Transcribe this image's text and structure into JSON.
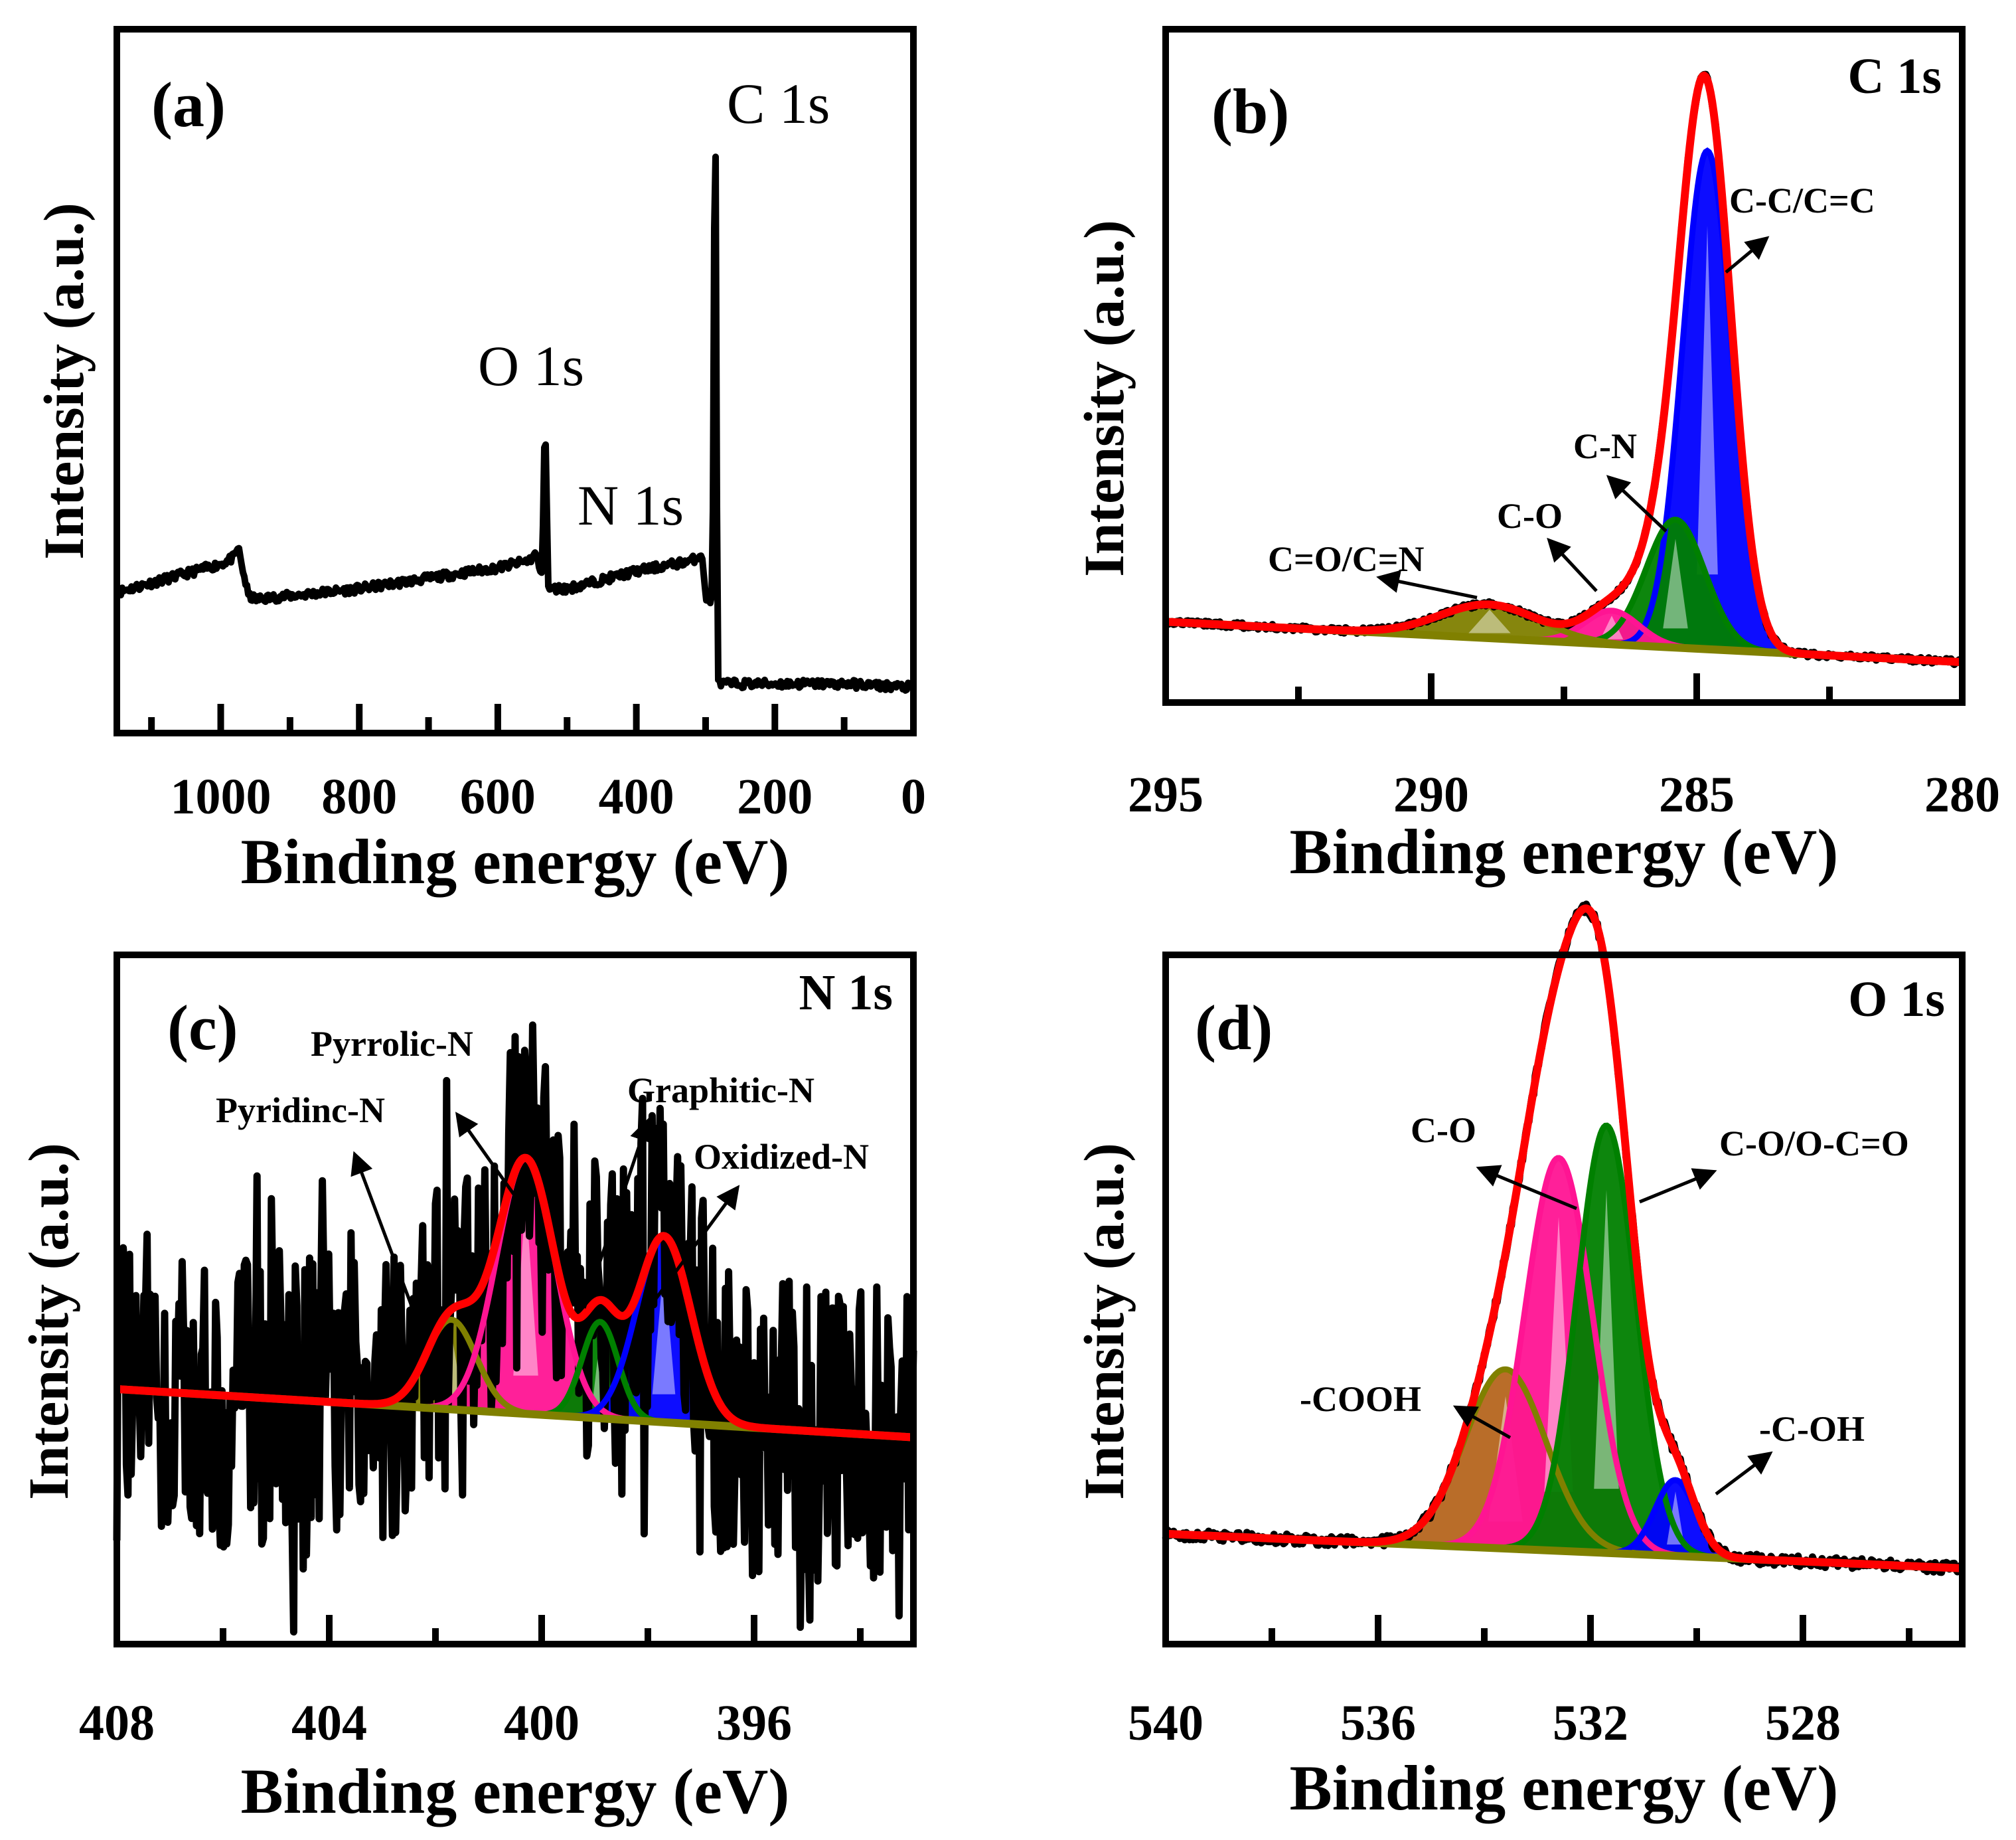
{
  "chart_data": [
    {
      "type": "line",
      "panel": "(a)",
      "title": "",
      "xlabel": "Binding energy (eV)",
      "ylabel": "Intensity (a.u.)",
      "xlim": [
        1150,
        0
      ],
      "ylim": [
        0,
        100
      ],
      "xticks": [
        1000,
        800,
        600,
        400,
        200,
        0
      ],
      "xtick_labels": [
        "1000",
        "800",
        "600",
        "400",
        "200",
        "0"
      ],
      "peak_labels": [
        {
          "text": "C 1s",
          "x": 285,
          "y": 93
        },
        {
          "text": "O 1s",
          "x": 532,
          "y": 51
        },
        {
          "text": "N 1s",
          "x": 400,
          "y": 30
        }
      ],
      "series": [
        {
          "name": "survey",
          "color": "#000000",
          "x": [
            1150,
            1000,
            980,
            975,
            970,
            960,
            950,
            800,
            700,
            600,
            555,
            545,
            536,
            533,
            530,
            528,
            500,
            400,
            320,
            305,
            300,
            295,
            290,
            287,
            285,
            283,
            280,
            275,
            260,
            200,
            100,
            0
          ],
          "y": [
            20,
            24,
            25,
            26.5,
            24,
            19.5,
            19,
            20.5,
            22,
            23.5,
            24.5,
            25.5,
            22,
            41,
            41,
            20.5,
            20.5,
            23,
            24.5,
            25.5,
            19,
            19,
            19,
            82,
            82,
            8,
            7,
            7,
            7,
            7,
            7,
            6.5
          ]
        }
      ]
    },
    {
      "type": "area",
      "panel": "(b)",
      "title": "C 1s",
      "xlabel": "Binding energy (eV)",
      "ylabel": "Intensity (a.u.)",
      "xlim": [
        295,
        280
      ],
      "ylim": [
        0,
        100
      ],
      "xticks": [
        295,
        290,
        285,
        280
      ],
      "xtick_labels": [
        "295",
        "290",
        "285",
        "280"
      ],
      "component_labels": [
        "C-C/C=C",
        "C-N",
        "C-O",
        "C=O/C=N"
      ],
      "background": {
        "x": [
          295,
          280
        ],
        "y": [
          12,
          6
        ]
      },
      "components": [
        {
          "name": "C-C/C=C",
          "color": "#0000ff",
          "center": 284.8,
          "fwhm": 1.1,
          "height": 74
        },
        {
          "name": "C-N",
          "color": "#008000",
          "center": 285.4,
          "fwhm": 1.3,
          "height": 19
        },
        {
          "name": "C-O",
          "color": "#ff1493",
          "center": 286.6,
          "fwhm": 1.2,
          "height": 5
        },
        {
          "name": "C=O/C=N",
          "color": "#808000",
          "center": 288.9,
          "fwhm": 2.2,
          "height": 5
        }
      ],
      "envelope_color": "#ff0000",
      "raw_color": "#000000"
    },
    {
      "type": "area",
      "panel": "(c)",
      "title": "N 1s",
      "xlabel": "Binding energy (eV)",
      "ylabel": "Intensity (a.u.)",
      "xlim": [
        408,
        393
      ],
      "ylim": [
        0,
        100
      ],
      "xticks": [
        408,
        404,
        400,
        396
      ],
      "xtick_labels": [
        "408",
        "404",
        "400",
        "396"
      ],
      "component_labels": [
        "Pyrrolic-N",
        "Pyridinc-N",
        "Graphitic-N",
        "Oxidized-N"
      ],
      "background": {
        "x": [
          408,
          393
        ],
        "y": [
          37,
          30
        ]
      },
      "components": [
        {
          "name": "Pyridinc-N",
          "color": "#808000",
          "center": 401.7,
          "fwhm": 1.1,
          "height": 13
        },
        {
          "name": "Pyrrolic-N",
          "color": "#ff1493",
          "center": 400.3,
          "fwhm": 1.3,
          "height": 37
        },
        {
          "name": "Graphitic-N",
          "color": "#008000",
          "center": 398.9,
          "fwhm": 0.8,
          "height": 14
        },
        {
          "name": "Oxidized-N",
          "color": "#0000ff",
          "center": 397.7,
          "fwhm": 1.2,
          "height": 27
        }
      ],
      "envelope_color": "#ff0000",
      "raw_color": "#000000",
      "raw_noise": 22
    },
    {
      "type": "area",
      "panel": "(d)",
      "title": "O 1s",
      "xlabel": "Binding energy (eV)",
      "ylabel": "Intensity (a.u.)",
      "xlim": [
        540,
        525
      ],
      "ylim": [
        0,
        100
      ],
      "xticks": [
        540,
        536,
        532,
        528
      ],
      "xtick_labels": [
        "540",
        "536",
        "532",
        "528"
      ],
      "component_labels": [
        "C-O",
        "C-O/O-C=O",
        "-COOH",
        "-C-OH"
      ],
      "background": {
        "x": [
          540,
          525
        ],
        "y": [
          16,
          11
        ]
      },
      "components": [
        {
          "name": "-COOH",
          "color": "#808000",
          "center": 533.6,
          "fwhm": 1.8,
          "height": 26,
          "fill": "#b5651d"
        },
        {
          "name": "C-O",
          "color": "#ff1493",
          "center": 532.6,
          "fwhm": 1.5,
          "height": 57
        },
        {
          "name": "C-O/O-C=O",
          "color": "#008000",
          "center": 531.7,
          "fwhm": 1.3,
          "height": 62
        },
        {
          "name": "-C-OH",
          "color": "#0000ff",
          "center": 530.4,
          "fwhm": 0.9,
          "height": 11
        }
      ],
      "envelope_color": "#ff0000",
      "raw_color": "#000000",
      "raw_noise": 1.5
    }
  ]
}
